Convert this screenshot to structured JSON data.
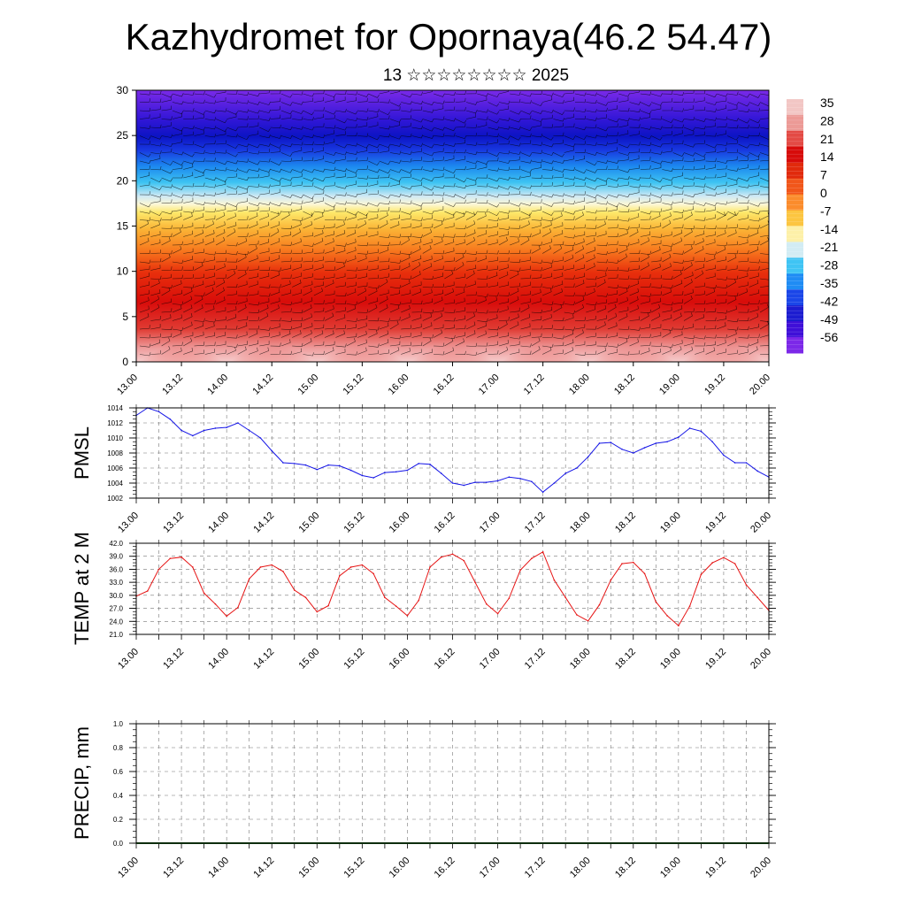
{
  "title": "Kazhydromet for Opornaya(46.2 54.47)",
  "subtitle": "13 ☆☆☆☆☆☆☆☆ 2025",
  "x_tick_labels": [
    "13.00",
    "13.12",
    "14.00",
    "14.12",
    "15.00",
    "15.12",
    "16.00",
    "16.12",
    "17.00",
    "17.12",
    "18.00",
    "18.12",
    "19.00",
    "19.12",
    "20.00"
  ],
  "line_x_tick_labels": [
    "13.00",
    "13.12",
    "14.00",
    "14.12",
    "15.00",
    "15.12",
    "16.00",
    "16.12",
    "17.00",
    "17.12",
    "18.00",
    "18.12",
    "19.00",
    "19.12",
    "20.00"
  ],
  "chart_data": [
    {
      "type": "heatmap",
      "xlim": [
        0,
        168
      ],
      "ylim": [
        0,
        30
      ],
      "y_ticks": [
        0,
        5,
        10,
        15,
        20,
        25,
        30
      ],
      "colorbar": {
        "labels": [
          "35",
          "28",
          "21",
          "14",
          "7",
          "0",
          "-7",
          "-14",
          "-21",
          "-28",
          "-35",
          "-42",
          "-49",
          "-56"
        ],
        "colors": [
          "#f2c6c4",
          "#ec9a96",
          "#e34a44",
          "#d70b0a",
          "#e12a0c",
          "#f1561a",
          "#fb8c2c",
          "#fcc540",
          "#fdf0a8",
          "#d2ecf4",
          "#3fc4f4",
          "#1f8cf4",
          "#1a46e8",
          "#1c1cd0",
          "#3f0fd8",
          "#7c28e8"
        ]
      },
      "wind_barbs": true
    },
    {
      "type": "line",
      "ylabel": "PMSL",
      "ylim": [
        1002,
        1014
      ],
      "y_ticks": [
        1002,
        1004,
        1006,
        1008,
        1010,
        1012,
        1014
      ],
      "y_tick_labels": [
        "1002",
        "1004",
        "1006",
        "1008",
        "1010",
        "1012",
        "1014"
      ],
      "xlim": [
        0,
        168
      ],
      "color": "#1414e6",
      "x_step_hours": 3,
      "values": [
        1013.0,
        1014.0,
        1013.5,
        1012.5,
        1011.0,
        1010.3,
        1011.0,
        1011.3,
        1011.4,
        1012.0,
        1011.0,
        1010.0,
        1008.3,
        1006.7,
        1006.6,
        1006.4,
        1005.8,
        1006.4,
        1006.3,
        1005.7,
        1005.0,
        1004.7,
        1005.4,
        1005.5,
        1005.7,
        1006.6,
        1006.5,
        1005.3,
        1004.0,
        1003.7,
        1004.1,
        1004.1,
        1004.3,
        1004.8,
        1004.6,
        1004.2,
        1002.8,
        1004.0,
        1005.3,
        1006.0,
        1007.5,
        1009.3,
        1009.4,
        1008.5,
        1008.0,
        1008.7,
        1009.3,
        1009.5,
        1010.1,
        1011.3,
        1010.9,
        1009.5,
        1007.7,
        1006.7,
        1006.7,
        1005.6,
        1004.8
      ]
    },
    {
      "type": "line",
      "ylabel": "TEMP at 2 M",
      "ylim": [
        21,
        42
      ],
      "y_ticks": [
        21,
        24,
        27,
        30,
        33,
        36,
        39,
        42
      ],
      "y_tick_labels": [
        "21.0",
        "24.0",
        "27.0",
        "30.0",
        "33.0",
        "36.0",
        "39.0",
        "42.0"
      ],
      "xlim": [
        0,
        168
      ],
      "color": "#e61414",
      "x_step_hours": 3,
      "values": [
        29.8,
        31.0,
        36.0,
        38.5,
        38.8,
        36.5,
        30.5,
        28.0,
        25.2,
        27.2,
        33.8,
        36.5,
        37.0,
        35.5,
        31.2,
        29.5,
        26.2,
        27.6,
        34.5,
        36.5,
        37.0,
        35.0,
        29.5,
        27.5,
        25.3,
        28.8,
        36.5,
        38.8,
        39.5,
        38.0,
        33.0,
        28.0,
        25.8,
        29.3,
        35.8,
        38.5,
        40.0,
        33.5,
        29.5,
        25.5,
        24.1,
        27.8,
        33.5,
        37.3,
        37.6,
        35.0,
        28.5,
        25.3,
        23.0,
        27.5,
        34.8,
        37.5,
        38.7,
        37.3,
        32.4,
        29.5,
        26.5
      ]
    },
    {
      "type": "bar",
      "ylabel": "PRECIP, mm",
      "ylim": [
        0,
        1.0
      ],
      "y_ticks": [
        0,
        0.2,
        0.4,
        0.6,
        0.8,
        1.0
      ],
      "y_tick_labels": [
        "0.0",
        "0.2",
        "0.4",
        "0.6",
        "0.8",
        "1.0"
      ],
      "xlim": [
        0,
        168
      ],
      "x_step_hours": 3,
      "values": [
        0,
        0,
        0,
        0,
        0,
        0,
        0,
        0,
        0,
        0,
        0,
        0,
        0,
        0,
        0,
        0,
        0,
        0,
        0,
        0,
        0,
        0,
        0,
        0,
        0,
        0,
        0,
        0,
        0,
        0,
        0,
        0,
        0,
        0,
        0,
        0,
        0,
        0,
        0,
        0,
        0,
        0,
        0,
        0,
        0,
        0,
        0,
        0,
        0,
        0,
        0,
        0,
        0,
        0,
        0,
        0,
        0
      ]
    }
  ]
}
